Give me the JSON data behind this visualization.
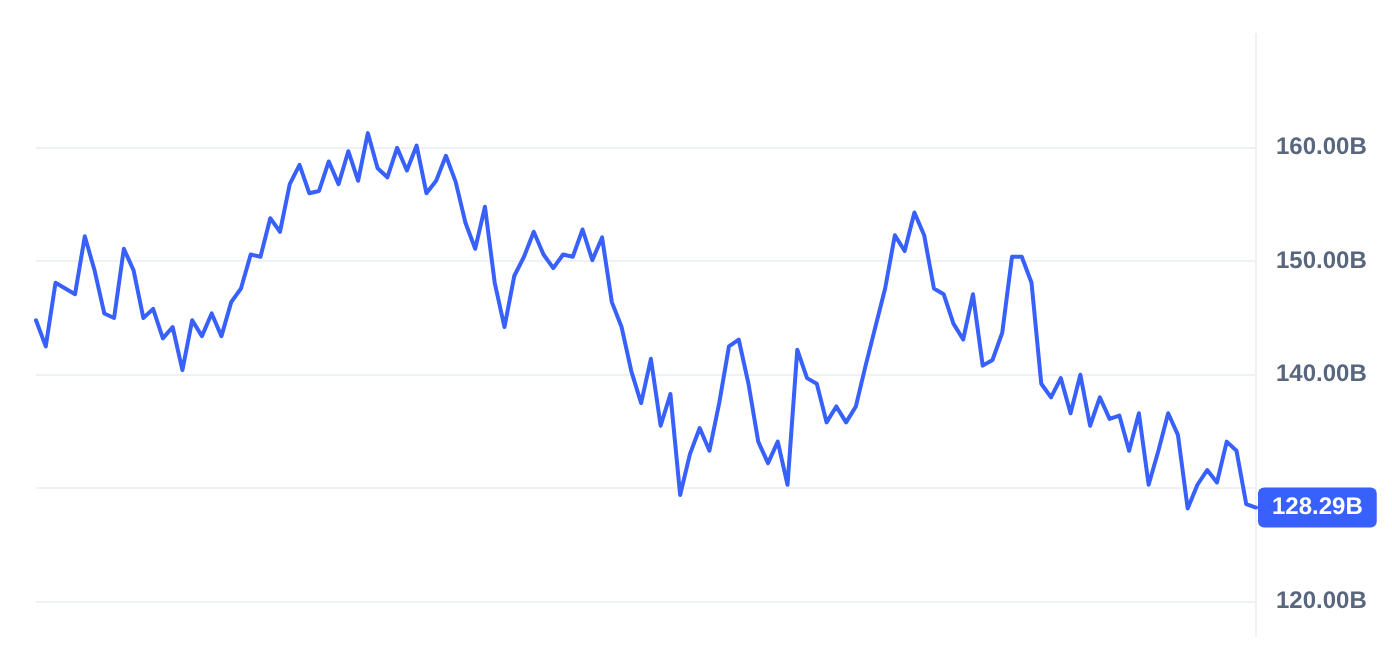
{
  "chart_data": {
    "type": "line",
    "categories": [
      null,
      null,
      null,
      null,
      null,
      null,
      null,
      null,
      null,
      null,
      null,
      null,
      null,
      null,
      null,
      null,
      null,
      null,
      null,
      null,
      null,
      null,
      null,
      null,
      null,
      null,
      null,
      null,
      null,
      null,
      null,
      null,
      null,
      null,
      null,
      null,
      null,
      null,
      null,
      null,
      null,
      null,
      null,
      null,
      null,
      null,
      null,
      null,
      null,
      null,
      null,
      null,
      null,
      null,
      null,
      null,
      null,
      null,
      null,
      null,
      null,
      null,
      null,
      null,
      null,
      null,
      null,
      null,
      null,
      null,
      null,
      null,
      null,
      null,
      null,
      null,
      null,
      null,
      null,
      null,
      null,
      null,
      null,
      null,
      null,
      null,
      null,
      null,
      null,
      null,
      null,
      null,
      null,
      null,
      null,
      null,
      null,
      null,
      null,
      null,
      null,
      null,
      null,
      null,
      null,
      null,
      null,
      null,
      null,
      null,
      null,
      null,
      null,
      null,
      null,
      null,
      null,
      null,
      null,
      null,
      null,
      null,
      null,
      null,
      null,
      null
    ],
    "series": [
      {
        "color": "#3861fb",
        "values": [
          144.8,
          142.5,
          148.1,
          147.6,
          147.1,
          152.2,
          149.2,
          145.4,
          145,
          151.1,
          149.2,
          145,
          145.8,
          143.2,
          144.2,
          140.4,
          144.8,
          143.4,
          145.4,
          143.4,
          146.4,
          147.6,
          150.6,
          150.4,
          153.8,
          152.6,
          156.8,
          158.5,
          156,
          156.2,
          158.8,
          156.8,
          159.7,
          157.1,
          161.3,
          158.2,
          157.4,
          160,
          158,
          160.2,
          156,
          157.1,
          159.3,
          157,
          153.4,
          151.1,
          154.8,
          148.1,
          144.2,
          148.7,
          150.4,
          152.6,
          150.6,
          149.4,
          150.6,
          150.4,
          152.8,
          150.1,
          152.1,
          146.4,
          144.2,
          140.3,
          137.5,
          141.4,
          135.5,
          138.3,
          129.4,
          133,
          135.3,
          133.3,
          137.5,
          142.5,
          143.1,
          139.2,
          134.1,
          132.2,
          134.1,
          130.3,
          142.2,
          139.7,
          139.2,
          135.8,
          137.2,
          135.8,
          137.2,
          140.8,
          144.2,
          147.6,
          152.3,
          150.9,
          154.3,
          152.3,
          147.6,
          147.1,
          144.5,
          143.1,
          147.1,
          140.8,
          141.3,
          143.7,
          150.4,
          150.4,
          148.1,
          139.2,
          138,
          139.7,
          136.6,
          140,
          135.5,
          138,
          136.1,
          136.4,
          133.3,
          136.6,
          130.3,
          133.3,
          136.6,
          134.7,
          128.2,
          130.3,
          131.6,
          130.5,
          134.1,
          133.3,
          128.6,
          128.29
        ]
      }
    ],
    "ylim": [
      117,
      170
    ],
    "yticks": [
      {
        "value": 120,
        "label": "120.00B"
      },
      {
        "value": 130,
        "label": null
      },
      {
        "value": 140,
        "label": "140.00B"
      },
      {
        "value": 150,
        "label": "150.00B"
      },
      {
        "value": 160,
        "label": "160.00B"
      }
    ],
    "tick_labels": "y",
    "grid": "y",
    "legend": false,
    "marker": "none",
    "line_style": "solid",
    "annotations": [
      "128.29B"
    ]
  }
}
